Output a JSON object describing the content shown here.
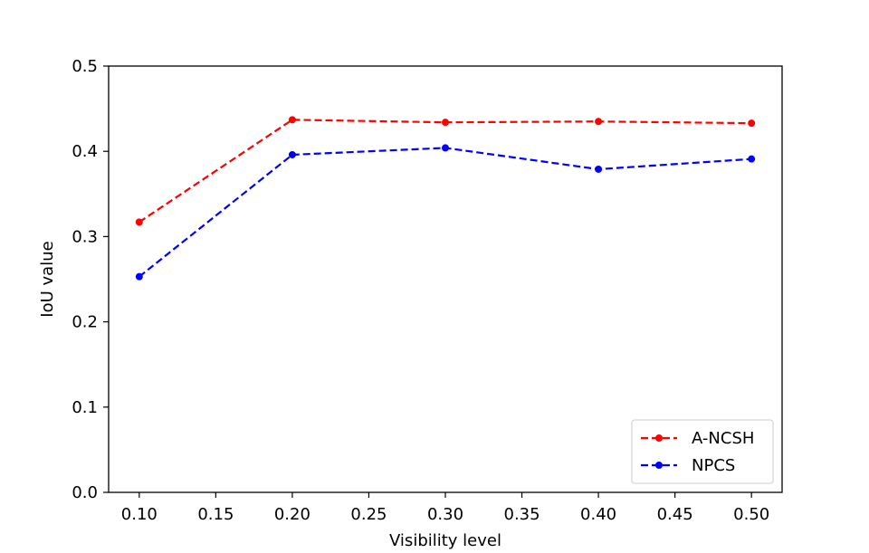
{
  "chart_data": {
    "type": "line",
    "title": "",
    "xlabel": "Visibility level",
    "ylabel": "IoU value",
    "xlim": [
      0.08,
      0.52
    ],
    "ylim": [
      0.0,
      0.5
    ],
    "x": [
      0.1,
      0.2,
      0.3,
      0.4,
      0.5
    ],
    "xticks": [
      0.1,
      0.15,
      0.2,
      0.25,
      0.3,
      0.35,
      0.4,
      0.45,
      0.5
    ],
    "xtick_labels": [
      "0.10",
      "0.15",
      "0.20",
      "0.25",
      "0.30",
      "0.35",
      "0.40",
      "0.45",
      "0.50"
    ],
    "yticks": [
      0.0,
      0.1,
      0.2,
      0.3,
      0.4,
      0.5
    ],
    "ytick_labels": [
      "0.0",
      "0.1",
      "0.2",
      "0.3",
      "0.4",
      "0.5"
    ],
    "grid": false,
    "legend_position": "bottom-right",
    "series": [
      {
        "name": "A-NCSH",
        "color": "#ff0000",
        "line_style": "dashed",
        "marker": "circle",
        "values": [
          0.317,
          0.437,
          0.434,
          0.435,
          0.433
        ]
      },
      {
        "name": "NPCS",
        "color": "#0000ff",
        "line_style": "dashed",
        "marker": "circle",
        "values": [
          0.253,
          0.396,
          0.404,
          0.379,
          0.391
        ]
      }
    ]
  }
}
